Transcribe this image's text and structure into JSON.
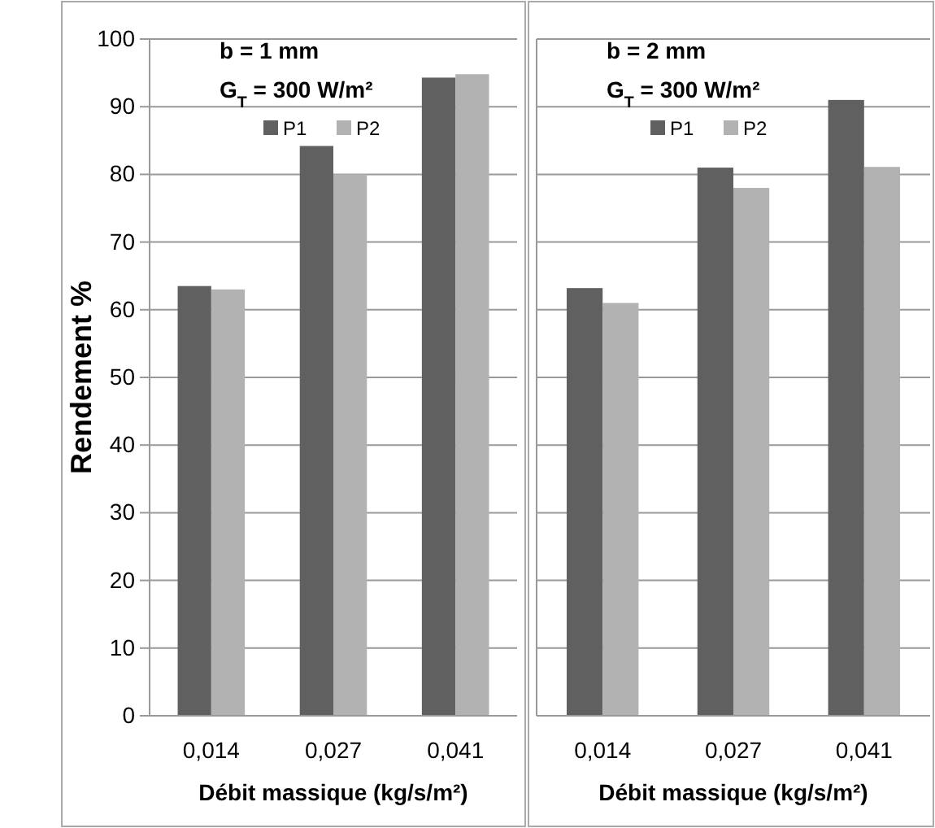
{
  "chart_data": [
    {
      "type": "bar",
      "categories": [
        "0,014",
        "0,027",
        "0,041"
      ],
      "xlabel": "Débit massique (kg/s/m²)",
      "ylabel": "Rendement %",
      "annotations": [
        "b = 1 mm",
        "G$_{T}$ = 300 W/m²"
      ],
      "series": [
        {
          "name": "P1",
          "color": "#606060",
          "values": [
            63.5,
            84.2,
            94.3
          ]
        },
        {
          "name": "P2",
          "color": "#b2b2b2",
          "values": [
            63,
            80,
            94.8
          ]
        }
      ],
      "ylim": [
        0,
        100
      ],
      "yticks": [
        0,
        10,
        20,
        30,
        40,
        50,
        60,
        70,
        80,
        90,
        100
      ],
      "grid": "y",
      "legend": "top"
    },
    {
      "type": "bar",
      "categories": [
        "0,014",
        "0,027",
        "0,041"
      ],
      "xlabel": "Débit massique (kg/s/m²)",
      "annotations": [
        "b = 2 mm",
        "G$_{T}$ = 300 W/m²"
      ],
      "series": [
        {
          "name": "P1",
          "color": "#606060",
          "values": [
            63.2,
            81,
            91
          ]
        },
        {
          "name": "P2",
          "color": "#b2b2b2",
          "values": [
            61,
            78,
            81.1
          ]
        }
      ],
      "ylim": [
        0,
        100
      ],
      "yticks": [
        0,
        10,
        20,
        30,
        40,
        50,
        60,
        70,
        80,
        90,
        100
      ],
      "grid": "y",
      "legend": "top",
      "tick_labels": "x"
    }
  ]
}
